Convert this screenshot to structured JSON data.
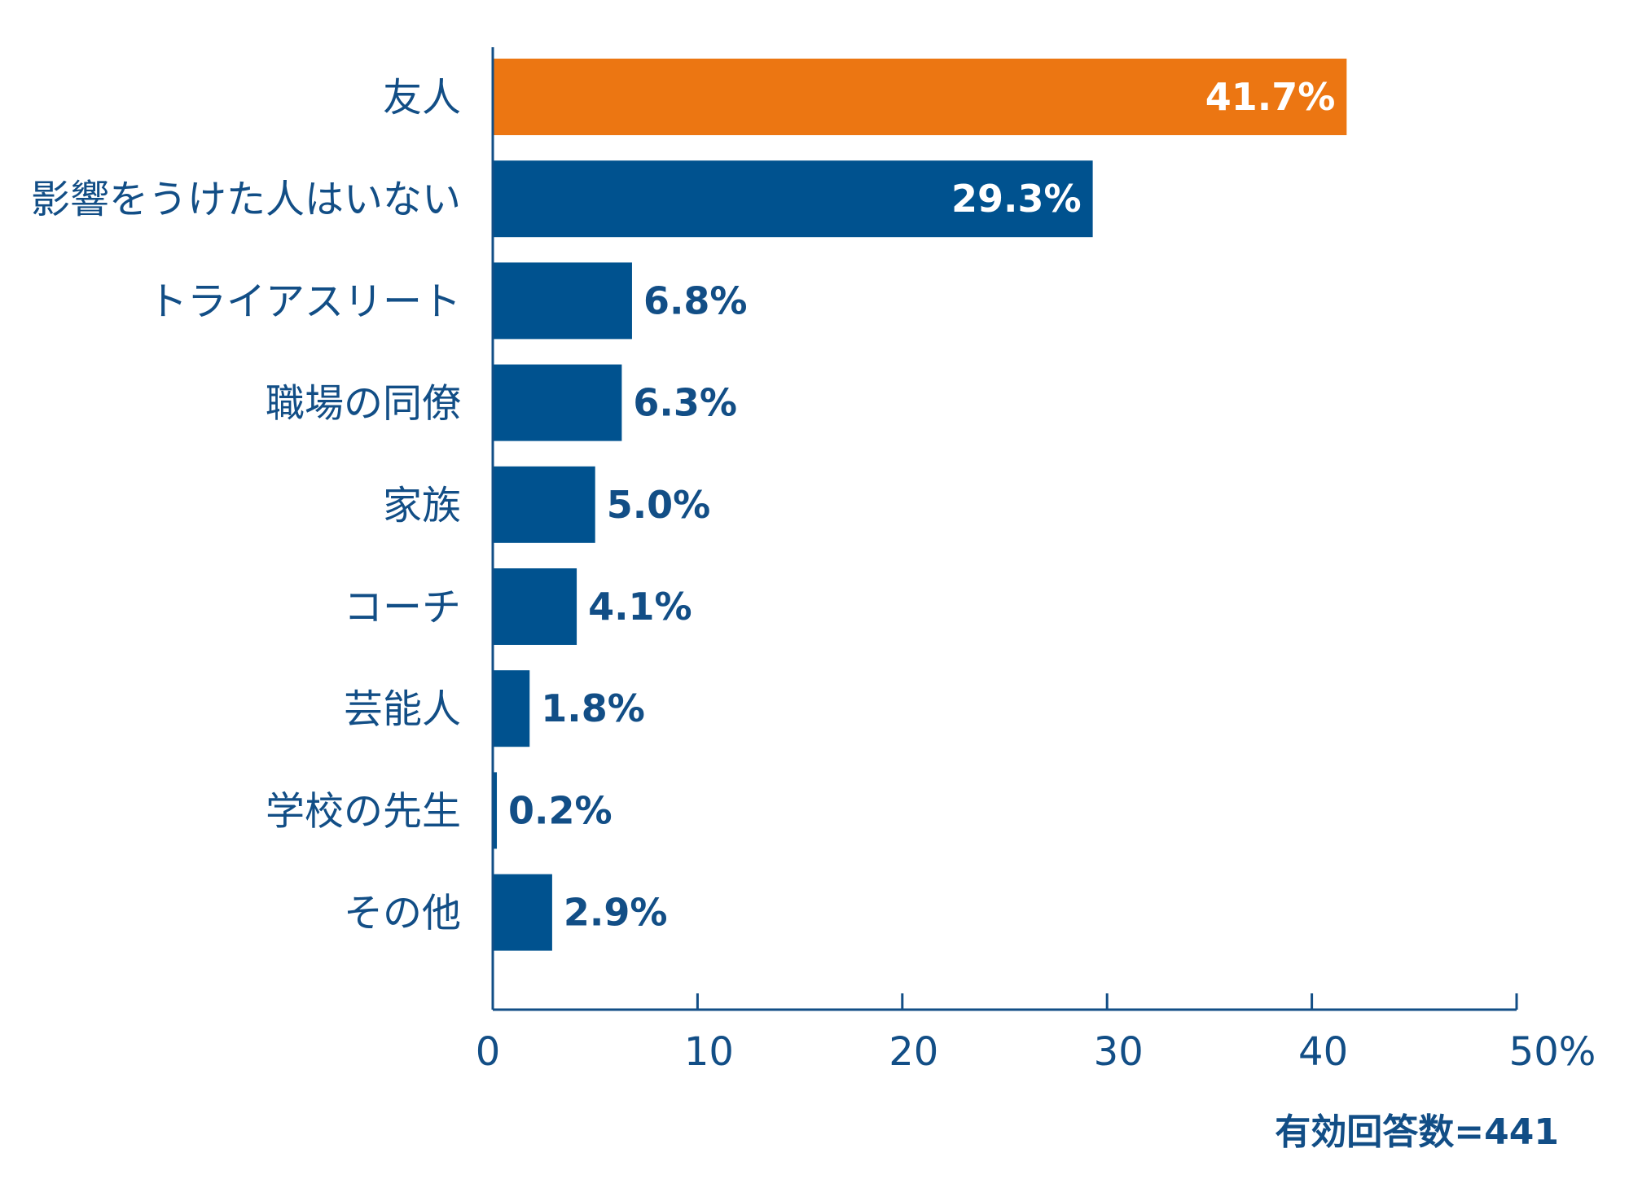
{
  "chart_data": {
    "type": "bar",
    "orientation": "horizontal",
    "categories": [
      "友人",
      "影響をうけた人はいない",
      "トライアスリート",
      "職場の同僚",
      "家族",
      "コーチ",
      "芸能人",
      "学校の先生",
      "その他"
    ],
    "values": [
      41.7,
      29.3,
      6.8,
      6.3,
      5.0,
      4.1,
      1.8,
      0.2,
      2.9
    ],
    "value_labels": [
      "41.7%",
      "29.3%",
      "6.8%",
      "6.3%",
      "5.0%",
      "4.1%",
      "1.8%",
      "0.2%",
      "2.9%"
    ],
    "xlim": [
      0,
      50
    ],
    "xticks": [
      0,
      10,
      20,
      30,
      40,
      50
    ],
    "xtick_labels": [
      "0",
      "10",
      "20",
      "30",
      "40",
      "50%"
    ],
    "grid": false,
    "highlight_index": 0,
    "colors": {
      "highlight": "#ec7612",
      "bar": "#00528f",
      "text": "#124e86",
      "label_on_bar": "#ffffff"
    },
    "note": "有効回答数=441"
  }
}
